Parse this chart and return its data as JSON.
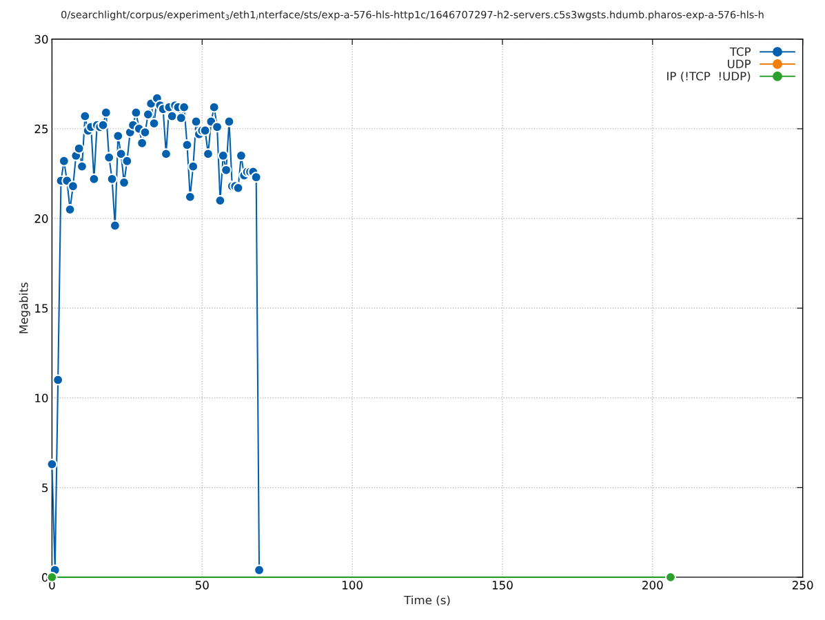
{
  "chart_data": {
    "type": "line",
    "title": "0/searchlight/corpus/experiment$_{3}$/eth1$_{i}$nterface/sts/exp-a-576-hls-http1c/1646707297-h2-servers.c5s3wgsts.hdumb.pharos-exp-a-576-hls-h",
    "xlabel": "Time (s)",
    "ylabel": "Megabits",
    "xlim": [
      0,
      250
    ],
    "xticks": [
      0,
      50,
      100,
      150,
      200,
      250
    ],
    "ylim": [
      0,
      30
    ],
    "yticks": [
      0,
      5,
      10,
      15,
      20,
      25,
      30
    ],
    "grid": true,
    "legend": "top right",
    "marker": "circle",
    "line_style": "solid",
    "series": [
      {
        "name": "TCP",
        "color": "#0060ad",
        "x": [
          0,
          1,
          2,
          3,
          4,
          5,
          6,
          7,
          8,
          9,
          10,
          11,
          12,
          13,
          14,
          15,
          16,
          17,
          18,
          19,
          20,
          21,
          22,
          23,
          24,
          25,
          26,
          27,
          28,
          29,
          30,
          31,
          32,
          33,
          34,
          35,
          36,
          37,
          38,
          39,
          40,
          41,
          42,
          43,
          44,
          45,
          46,
          47,
          48,
          49,
          50,
          51,
          52,
          53,
          54,
          55,
          56,
          57,
          58,
          59,
          60,
          61,
          62,
          63,
          64,
          65,
          66,
          67,
          68,
          69
        ],
        "values": [
          6.3,
          0.4,
          11.0,
          22.1,
          23.2,
          22.1,
          20.5,
          21.8,
          23.5,
          23.9,
          22.9,
          25.7,
          24.9,
          25.1,
          22.2,
          25.2,
          25.1,
          25.2,
          25.9,
          23.4,
          22.2,
          19.6,
          24.6,
          23.6,
          22.0,
          23.2,
          24.8,
          25.2,
          25.9,
          25.0,
          24.2,
          24.8,
          25.8,
          26.4,
          25.3,
          26.7,
          26.3,
          26.1,
          23.6,
          26.2,
          25.7,
          26.3,
          26.2,
          25.6,
          26.2,
          24.1,
          21.2,
          22.9,
          25.4,
          24.7,
          24.9,
          24.9,
          23.6,
          25.4,
          26.2,
          25.1,
          21.0,
          23.5,
          22.7,
          25.4,
          21.8,
          21.8,
          21.7,
          23.5,
          22.4,
          22.6,
          22.6,
          22.6,
          22.3,
          0.4
        ]
      },
      {
        "name": "UDP",
        "color": "#f07f0e"
      },
      {
        "name": "IP (!TCP  !UDP)",
        "color": "#2ca02c",
        "x": [
          0,
          206
        ],
        "values": [
          0,
          0
        ]
      }
    ]
  }
}
